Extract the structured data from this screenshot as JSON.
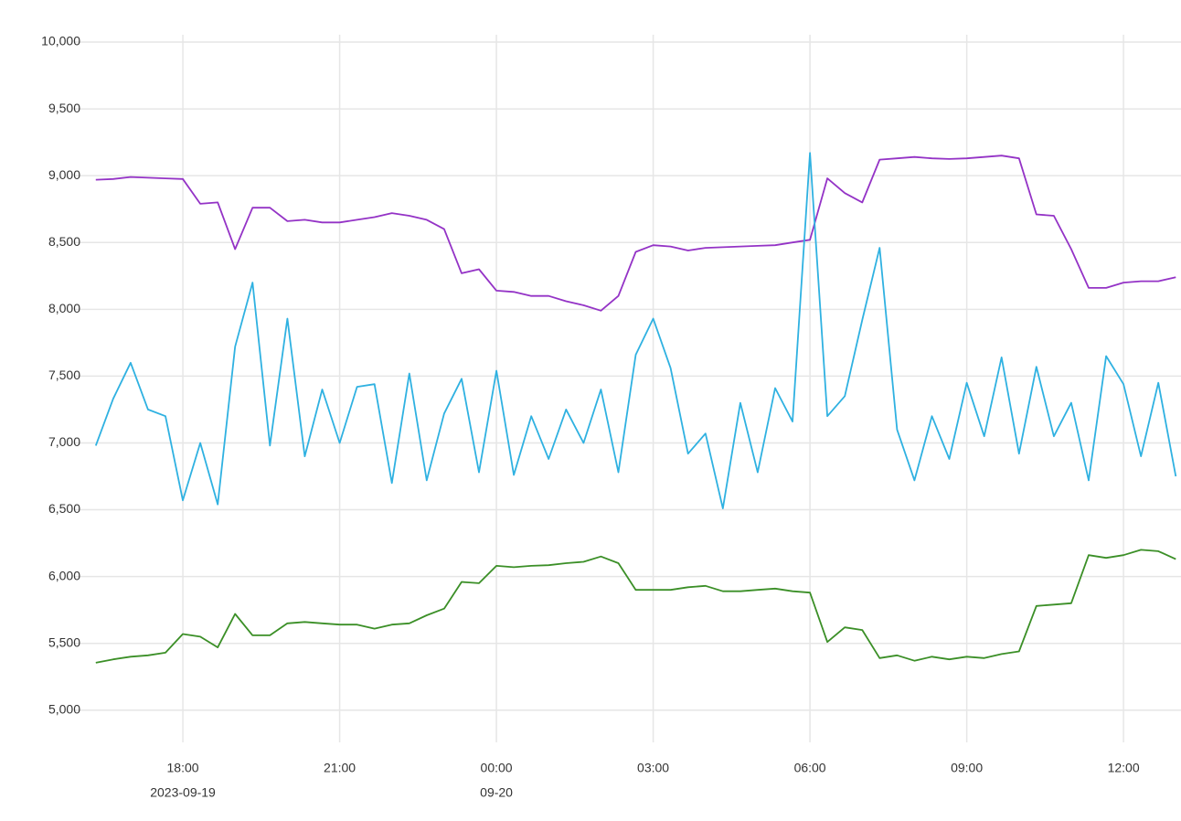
{
  "chart_data": {
    "type": "line",
    "x": [
      "2023-09-19 16:20",
      "2023-09-19 16:40",
      "2023-09-19 17:00",
      "2023-09-19 17:20",
      "2023-09-19 17:40",
      "2023-09-19 18:00",
      "2023-09-19 18:20",
      "2023-09-19 18:40",
      "2023-09-19 19:00",
      "2023-09-19 19:20",
      "2023-09-19 19:40",
      "2023-09-19 20:00",
      "2023-09-19 20:20",
      "2023-09-19 20:40",
      "2023-09-19 21:00",
      "2023-09-19 21:20",
      "2023-09-19 21:40",
      "2023-09-19 22:00",
      "2023-09-19 22:20",
      "2023-09-19 22:40",
      "2023-09-19 23:00",
      "2023-09-19 23:20",
      "2023-09-19 23:40",
      "2023-09-20 00:00",
      "2023-09-20 00:20",
      "2023-09-20 00:40",
      "2023-09-20 01:00",
      "2023-09-20 01:20",
      "2023-09-20 01:40",
      "2023-09-20 02:00",
      "2023-09-20 02:20",
      "2023-09-20 02:40",
      "2023-09-20 03:00",
      "2023-09-20 03:20",
      "2023-09-20 03:40",
      "2023-09-20 04:00",
      "2023-09-20 04:20",
      "2023-09-20 04:40",
      "2023-09-20 05:00",
      "2023-09-20 05:20",
      "2023-09-20 05:40",
      "2023-09-20 06:00",
      "2023-09-20 06:20",
      "2023-09-20 06:40",
      "2023-09-20 07:00",
      "2023-09-20 07:20",
      "2023-09-20 07:40",
      "2023-09-20 08:00",
      "2023-09-20 08:20",
      "2023-09-20 08:40",
      "2023-09-20 09:00",
      "2023-09-20 09:20",
      "2023-09-20 09:40",
      "2023-09-20 10:00",
      "2023-09-20 10:20",
      "2023-09-20 10:40",
      "2023-09-20 11:00",
      "2023-09-20 11:20",
      "2023-09-20 11:40",
      "2023-09-20 12:00",
      "2023-09-20 12:20",
      "2023-09-20 12:40",
      "2023-09-20 13:00"
    ],
    "series": [
      {
        "color": "#9433c6",
        "values": [
          8970,
          8975,
          8990,
          8985,
          8980,
          8975,
          8790,
          8800,
          8450,
          8760,
          8760,
          8660,
          8670,
          8650,
          8650,
          8670,
          8690,
          8720,
          8700,
          8670,
          8600,
          8270,
          8300,
          8140,
          8130,
          8100,
          8100,
          8060,
          8030,
          7990,
          8100,
          8430,
          8480,
          8470,
          8440,
          8460,
          8465,
          8470,
          8475,
          8480,
          8500,
          8520,
          8980,
          8870,
          8800,
          9120,
          9130,
          9140,
          9130,
          9125,
          9130,
          9140,
          9150,
          9130,
          8710,
          8700,
          8450,
          8160,
          8160,
          8200,
          8210,
          8210,
          8240
        ]
      },
      {
        "color": "#2fb1e1",
        "values": [
          6980,
          7330,
          7600,
          7250,
          7200,
          6570,
          7000,
          6540,
          7720,
          8200,
          6980,
          7930,
          6900,
          7400,
          7000,
          7420,
          7440,
          6700,
          7520,
          6720,
          7220,
          7480,
          6780,
          7540,
          6760,
          7200,
          6880,
          7250,
          7000,
          7400,
          6780,
          7660,
          7930,
          7560,
          6920,
          7070,
          6510,
          7300,
          6780,
          7410,
          7160,
          9170,
          7200,
          7350,
          7920,
          8460,
          7100,
          6720,
          7200,
          6880,
          7450,
          7050,
          7640,
          6920,
          7570,
          7050,
          7300,
          6720,
          7650,
          7440,
          6900,
          7450,
          6750
        ]
      },
      {
        "color": "#3b8f27",
        "values": [
          5355,
          5380,
          5400,
          5410,
          5430,
          5570,
          5550,
          5470,
          5720,
          5560,
          5560,
          5650,
          5660,
          5650,
          5640,
          5640,
          5610,
          5640,
          5650,
          5710,
          5760,
          5960,
          5950,
          6080,
          6070,
          6080,
          6085,
          6100,
          6110,
          6150,
          6100,
          5900,
          5900,
          5900,
          5920,
          5930,
          5890,
          5890,
          5900,
          5910,
          5890,
          5880,
          5510,
          5620,
          5600,
          5390,
          5410,
          5370,
          5400,
          5380,
          5400,
          5390,
          5420,
          5440,
          5780,
          5790,
          5800,
          6160,
          6140,
          6160,
          6200,
          6190,
          6130
        ]
      }
    ],
    "xlim": [
      "2023-09-19 16:15",
      "2023-09-20 13:06"
    ],
    "xticks": [
      {
        "value": "2023-09-19 18:00",
        "label": "18:00",
        "date": "2023-09-19"
      },
      {
        "value": "2023-09-19 21:00",
        "label": "21:00"
      },
      {
        "value": "2023-09-20 00:00",
        "label": "00:00",
        "date": "09-20"
      },
      {
        "value": "2023-09-20 03:00",
        "label": "03:00"
      },
      {
        "value": "2023-09-20 06:00",
        "label": "06:00"
      },
      {
        "value": "2023-09-20 09:00",
        "label": "09:00"
      },
      {
        "value": "2023-09-20 12:00",
        "label": "12:00"
      }
    ],
    "ylim": [
      4800,
      10100
    ],
    "yticks": [
      {
        "value": 5000,
        "label": "5,000"
      },
      {
        "value": 5500,
        "label": "5,500"
      },
      {
        "value": 6000,
        "label": "6,000"
      },
      {
        "value": 6500,
        "label": "6,500"
      },
      {
        "value": 7000,
        "label": "7,000"
      },
      {
        "value": 7500,
        "label": "7,500"
      },
      {
        "value": 8000,
        "label": "8,000"
      },
      {
        "value": 8500,
        "label": "8,500"
      },
      {
        "value": 9000,
        "label": "9,000"
      },
      {
        "value": 9500,
        "label": "9,500"
      },
      {
        "value": 10000,
        "label": "10,000"
      }
    ],
    "grid": true
  }
}
